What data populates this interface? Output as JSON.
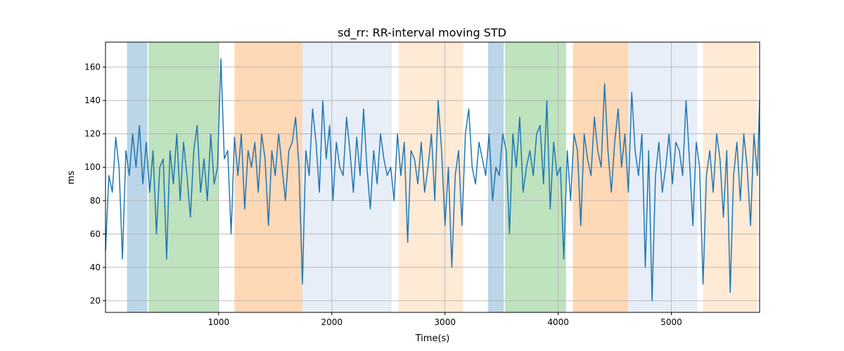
{
  "chart_data": {
    "type": "line",
    "title": "sd_rr: RR-interval moving STD",
    "xlabel": "Time(s)",
    "ylabel": "ms",
    "xlim": [
      0,
      5780
    ],
    "ylim": [
      13,
      175
    ],
    "grid": true,
    "x_ticks": [
      1000,
      2000,
      3000,
      4000,
      5000
    ],
    "x_tick_labels": [
      "1000",
      "2000",
      "3000",
      "4000",
      "5000"
    ],
    "y_ticks": [
      20,
      40,
      60,
      80,
      100,
      120,
      140,
      160
    ],
    "y_tick_labels": [
      "20",
      "40",
      "60",
      "80",
      "100",
      "120",
      "140",
      "160"
    ],
    "line_color": "#1f77b4",
    "shaded_regions": [
      {
        "x0": 190,
        "x1": 370,
        "color": "#1f77b4",
        "opacity": 0.3
      },
      {
        "x0": 380,
        "x1": 1000,
        "color": "#2ca02c",
        "opacity": 0.3
      },
      {
        "x0": 1140,
        "x1": 1740,
        "color": "#ff7f0e",
        "opacity": 0.3
      },
      {
        "x0": 1740,
        "x1": 2530,
        "color": "#aec7e8",
        "opacity": 0.3
      },
      {
        "x0": 2590,
        "x1": 3160,
        "color": "#ffbb78",
        "opacity": 0.3
      },
      {
        "x0": 3380,
        "x1": 3520,
        "color": "#1f77b4",
        "opacity": 0.3
      },
      {
        "x0": 3530,
        "x1": 4070,
        "color": "#2ca02c",
        "opacity": 0.3
      },
      {
        "x0": 4130,
        "x1": 4620,
        "color": "#ff7f0e",
        "opacity": 0.3
      },
      {
        "x0": 4620,
        "x1": 5230,
        "color": "#aec7e8",
        "opacity": 0.3
      },
      {
        "x0": 5280,
        "x1": 5760,
        "color": "#ffbb78",
        "opacity": 0.3
      }
    ],
    "series": [
      {
        "x": [
          0,
          30,
          60,
          90,
          120,
          150,
          180,
          210,
          240,
          270,
          300,
          330,
          360,
          390,
          420,
          450,
          480,
          510,
          540,
          570,
          600,
          630,
          660,
          690,
          720,
          750,
          780,
          810,
          840,
          870,
          900,
          930,
          960,
          990,
          1020,
          1050,
          1080,
          1110,
          1140,
          1170,
          1200,
          1230,
          1260,
          1290,
          1320,
          1350,
          1380,
          1410,
          1440,
          1470,
          1500,
          1530,
          1560,
          1590,
          1620,
          1650,
          1680,
          1710,
          1740,
          1770,
          1800,
          1830,
          1860,
          1890,
          1920,
          1950,
          1980,
          2010,
          2040,
          2070,
          2100,
          2130,
          2160,
          2190,
          2220,
          2250,
          2280,
          2310,
          2340,
          2370,
          2400,
          2430,
          2460,
          2490,
          2520,
          2550,
          2580,
          2610,
          2640,
          2670,
          2700,
          2730,
          2760,
          2790,
          2820,
          2850,
          2880,
          2910,
          2940,
          2970,
          3000,
          3030,
          3060,
          3090,
          3120,
          3150,
          3180,
          3210,
          3240,
          3270,
          3300,
          3330,
          3360,
          3390,
          3420,
          3450,
          3480,
          3510,
          3540,
          3570,
          3600,
          3630,
          3660,
          3690,
          3720,
          3750,
          3780,
          3810,
          3840,
          3870,
          3900,
          3930,
          3960,
          3990,
          4020,
          4050,
          4080,
          4110,
          4140,
          4170,
          4200,
          4230,
          4260,
          4290,
          4320,
          4350,
          4380,
          4410,
          4440,
          4470,
          4500,
          4530,
          4560,
          4590,
          4620,
          4650,
          4680,
          4710,
          4740,
          4770,
          4800,
          4830,
          4860,
          4890,
          4920,
          4950,
          4980,
          5010,
          5040,
          5070,
          5100,
          5130,
          5160,
          5190,
          5220,
          5250,
          5280,
          5310,
          5340,
          5370,
          5400,
          5430,
          5460,
          5490,
          5520,
          5550,
          5580,
          5610,
          5640,
          5670,
          5700,
          5730,
          5760,
          5780
        ],
        "y": [
          50,
          95,
          85,
          118,
          100,
          45,
          110,
          95,
          120,
          100,
          125,
          90,
          115,
          85,
          110,
          60,
          100,
          105,
          45,
          110,
          90,
          120,
          80,
          115,
          95,
          70,
          110,
          125,
          85,
          105,
          80,
          120,
          90,
          100,
          165,
          105,
          110,
          60,
          118,
          95,
          120,
          75,
          110,
          100,
          115,
          85,
          120,
          105,
          65,
          110,
          95,
          120,
          100,
          80,
          110,
          115,
          130,
          100,
          30,
          110,
          95,
          135,
          115,
          85,
          140,
          105,
          125,
          80,
          115,
          100,
          95,
          130,
          110,
          85,
          118,
          95,
          135,
          100,
          75,
          110,
          90,
          120,
          105,
          95,
          100,
          80,
          120,
          95,
          115,
          55,
          110,
          105,
          90,
          115,
          85,
          100,
          120,
          80,
          140,
          110,
          65,
          100,
          40,
          95,
          110,
          65,
          120,
          135,
          100,
          90,
          115,
          105,
          95,
          120,
          80,
          100,
          95,
          120,
          110,
          60,
          120,
          100,
          130,
          85,
          100,
          110,
          95,
          120,
          125,
          90,
          140,
          75,
          115,
          95,
          100,
          45,
          110,
          80,
          120,
          110,
          65,
          120,
          105,
          95,
          130,
          110,
          100,
          150,
          110,
          85,
          115,
          135,
          100,
          120,
          85,
          145,
          110,
          95,
          120,
          40,
          110,
          20,
          95,
          115,
          85,
          100,
          120,
          90,
          115,
          110,
          95,
          140,
          105,
          65,
          115,
          100,
          30,
          95,
          110,
          85,
          120,
          105,
          70,
          110,
          25,
          95,
          115,
          80,
          120,
          100,
          65,
          120,
          95,
          140
        ]
      }
    ]
  }
}
